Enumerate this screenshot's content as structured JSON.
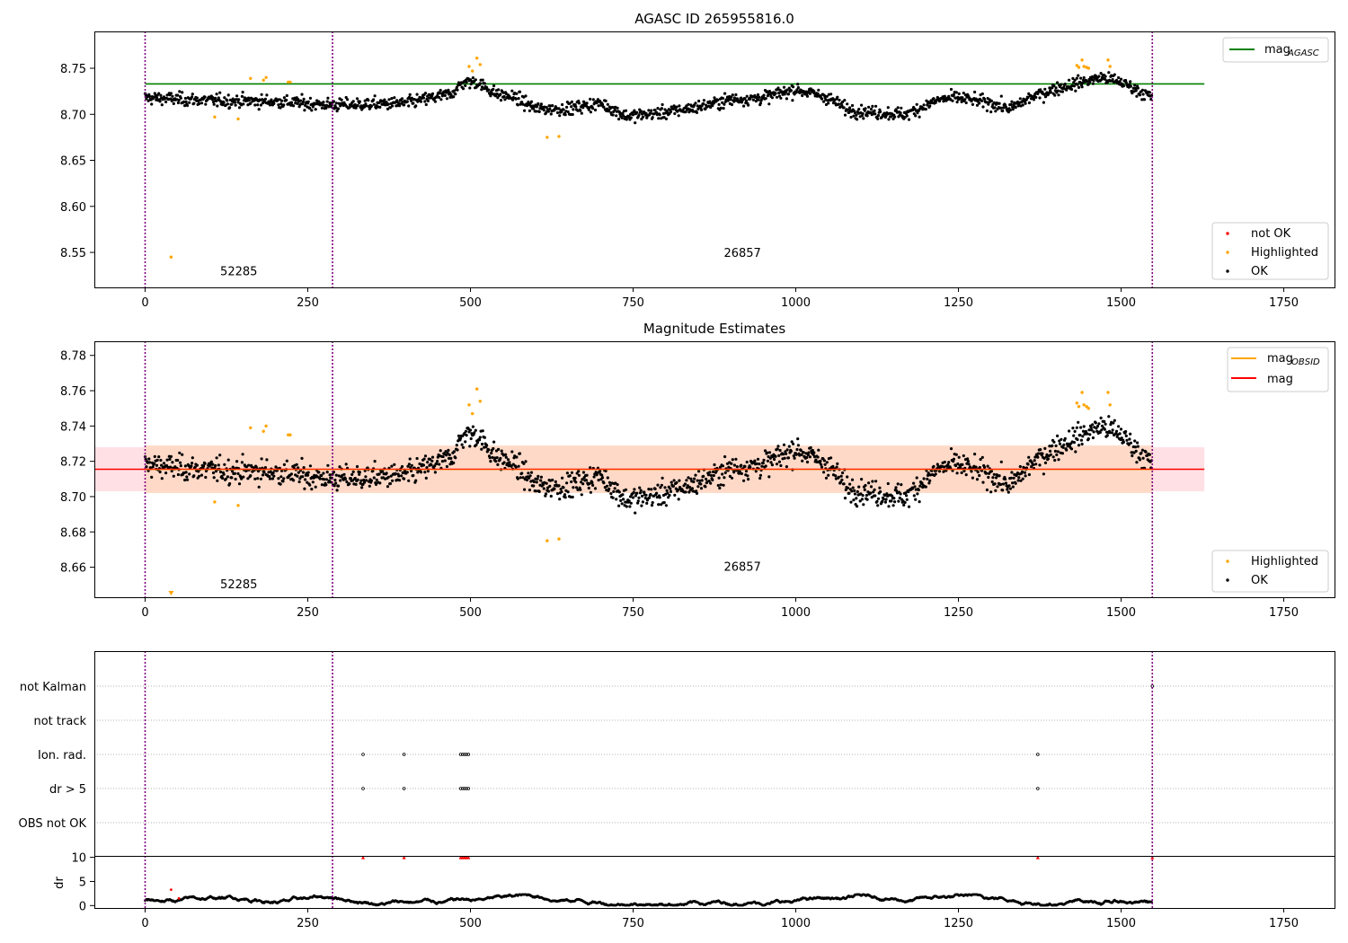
{
  "figure": {
    "title_top": "AGASC ID 265955816.0",
    "title_mid": "Magnitude Estimates"
  },
  "colors": {
    "ok": "#000000",
    "highlighted": "#ffa500",
    "not_ok": "#ff0000",
    "agasc_line": "#008000",
    "mag_line": "#ff0000",
    "band_outer": "#ffdde2",
    "band_inner": "#ffd8c4",
    "obsid_line": "#800080"
  },
  "chart_data": [
    {
      "type": "scatter",
      "title": "AGASC ID 265955816.0",
      "xlim": [
        -78,
        1828
      ],
      "ylim": [
        8.512,
        8.79
      ],
      "xticks": [
        0,
        250,
        500,
        750,
        1000,
        1250,
        1500,
        1750
      ],
      "yticks": [
        8.55,
        8.6,
        8.65,
        8.7,
        8.75
      ],
      "ytick_labels": [
        "8.55",
        "8.60",
        "8.65",
        "8.70",
        "8.75"
      ],
      "hlines": [
        {
          "name": "mag",
          "sub": "AGASC",
          "y": 8.733,
          "x_range": [
            0,
            1628
          ],
          "color": "#008000"
        }
      ],
      "obsid_boundaries": [
        0,
        288,
        1548
      ],
      "obsid_labels": [
        {
          "text": "52285",
          "x": 144,
          "y": 8.525
        },
        {
          "text": "26857",
          "x": 918,
          "y": 8.545
        }
      ],
      "legend_top": {
        "position": "upper right",
        "entries": [
          {
            "label": "mag",
            "sub": "AGASC",
            "kind": "line",
            "color": "#008000"
          }
        ]
      },
      "legend_bottom": {
        "position": "lower right",
        "entries": [
          {
            "label": "not OK",
            "kind": "dot",
            "color": "#ff0000"
          },
          {
            "label": "Highlighted",
            "kind": "dot",
            "color": "#ffa500"
          },
          {
            "label": "OK",
            "kind": "dot",
            "color": "#000000"
          }
        ]
      },
      "series": [
        {
          "name": "OK",
          "type": "scatter_trend",
          "n": 1548,
          "color": "#000000",
          "trend": [
            [
              0,
              8.718
            ],
            [
              100,
              8.715
            ],
            [
              200,
              8.714
            ],
            [
              288,
              8.71
            ],
            [
              400,
              8.712
            ],
            [
              470,
              8.722
            ],
            [
              490,
              8.735
            ],
            [
              510,
              8.735
            ],
            [
              540,
              8.722
            ],
            [
              570,
              8.718
            ],
            [
              600,
              8.706
            ],
            [
              650,
              8.706
            ],
            [
              700,
              8.712
            ],
            [
              740,
              8.698
            ],
            [
              800,
              8.702
            ],
            [
              850,
              8.708
            ],
            [
              900,
              8.716
            ],
            [
              950,
              8.718
            ],
            [
              1000,
              8.727
            ],
            [
              1050,
              8.718
            ],
            [
              1080,
              8.705
            ],
            [
              1120,
              8.702
            ],
            [
              1170,
              8.7
            ],
            [
              1220,
              8.716
            ],
            [
              1250,
              8.718
            ],
            [
              1300,
              8.712
            ],
            [
              1330,
              8.706
            ],
            [
              1360,
              8.718
            ],
            [
              1400,
              8.728
            ],
            [
              1440,
              8.735
            ],
            [
              1470,
              8.74
            ],
            [
              1500,
              8.735
            ],
            [
              1548,
              8.718
            ]
          ],
          "noise": 0.0065
        },
        {
          "name": "Highlighted",
          "type": "scatter",
          "color": "#ffa500",
          "x": [
            40,
            107,
            143,
            162,
            182,
            186,
            220,
            223,
            498,
            503,
            510,
            515,
            618,
            636,
            1432,
            1435,
            1440,
            1443,
            1447,
            1450,
            1480,
            1483
          ],
          "y": [
            8.545,
            8.697,
            8.695,
            8.739,
            8.737,
            8.74,
            8.735,
            8.735,
            8.752,
            8.747,
            8.761,
            8.754,
            8.675,
            8.676,
            8.753,
            8.751,
            8.759,
            8.752,
            8.751,
            8.75,
            8.759,
            8.752
          ]
        }
      ]
    },
    {
      "type": "scatter",
      "title": "Magnitude Estimates",
      "xlim": [
        -78,
        1828
      ],
      "ylim": [
        8.643,
        8.788
      ],
      "xticks": [
        0,
        250,
        500,
        750,
        1000,
        1250,
        1500,
        1750
      ],
      "yticks": [
        8.66,
        8.68,
        8.7,
        8.72,
        8.74,
        8.76,
        8.78
      ],
      "ytick_labels": [
        "8.66",
        "8.68",
        "8.70",
        "8.72",
        "8.74",
        "8.76",
        "8.78"
      ],
      "hlines": [
        {
          "name": "mag",
          "y": 8.7155,
          "x_range": [
            -78,
            1628
          ],
          "color": "#ff0000"
        }
      ],
      "bands": [
        {
          "y": [
            8.703,
            8.728
          ],
          "x_range": [
            -78,
            1628
          ],
          "color": "#ffdde2"
        },
        {
          "y": [
            8.702,
            8.729
          ],
          "x_range": [
            0,
            1548
          ],
          "color": "#ffd8c4"
        }
      ],
      "obsid_boundaries": [
        0,
        288,
        1548
      ],
      "obsid_labels": [
        {
          "text": "52285",
          "x": 144,
          "y": 8.648
        },
        {
          "text": "26857",
          "x": 918,
          "y": 8.658
        }
      ],
      "legend_top": {
        "position": "upper right",
        "entries": [
          {
            "label": "mag",
            "sub": "OBSID",
            "kind": "line",
            "color": "#ffa500"
          },
          {
            "label": "mag",
            "kind": "line",
            "color": "#ff0000"
          }
        ]
      },
      "legend_bottom": {
        "position": "lower right",
        "entries": [
          {
            "label": "Highlighted",
            "kind": "dot",
            "color": "#ffa500"
          },
          {
            "label": "OK",
            "kind": "dot",
            "color": "#000000"
          }
        ]
      },
      "obsid_means": [
        {
          "y": 8.7155,
          "x_range": [
            0,
            288
          ]
        },
        {
          "y": 8.7155,
          "x_range": [
            288,
            1548
          ]
        }
      ]
    },
    {
      "type": "scatter",
      "title": "",
      "xlim": [
        -78,
        1828
      ],
      "categories": [
        "not Kalman",
        "not track",
        "Ion. rad.",
        "dr > 5",
        "OBS not OK"
      ],
      "flags": [
        {
          "category": "not Kalman",
          "x": [
            1548
          ]
        },
        {
          "category": "not track",
          "x": []
        },
        {
          "category": "Ion. rad.",
          "x": [
            335,
            398,
            485,
            488,
            491,
            494,
            497,
            1372
          ]
        },
        {
          "category": "dr > 5",
          "x": [
            335,
            398,
            485,
            488,
            491,
            494,
            497,
            1372
          ]
        },
        {
          "category": "OBS not OK",
          "x": []
        }
      ],
      "obsid_boundaries": [
        0,
        288,
        1548
      ]
    },
    {
      "type": "scatter",
      "xlabel": "",
      "ylabel": "dr",
      "xlim": [
        -78,
        1828
      ],
      "ylim": [
        -0.5,
        10.3
      ],
      "xticks": [
        0,
        250,
        500,
        750,
        1000,
        1250,
        1500,
        1750
      ],
      "yticks": [
        0,
        5,
        10
      ],
      "obsid_boundaries": [
        0,
        288,
        1548
      ],
      "series": [
        {
          "name": "dr",
          "type": "scatter_random",
          "n": 1548,
          "base": 0.9,
          "spread": 0.6,
          "color": "#000000",
          "outliers_x": [
            40,
            52
          ],
          "outliers_y": [
            3.3,
            1.5
          ]
        },
        {
          "name": "dr clipped",
          "type": "scatter",
          "marker": "triangle",
          "color": "#ff0000",
          "x": [
            335,
            398,
            485,
            488,
            491,
            494,
            497,
            1372,
            1548
          ],
          "y": [
            10,
            10,
            10,
            10,
            10,
            10,
            10,
            10,
            10
          ]
        }
      ]
    }
  ]
}
